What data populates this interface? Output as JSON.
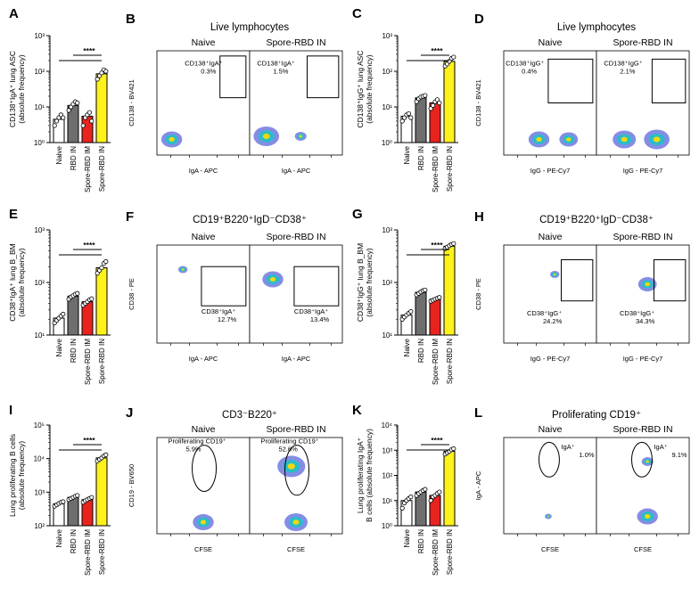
{
  "colors": {
    "naive": "#ffffff",
    "rbd_in": "#6e6e6e",
    "spore_rbd_im": "#e8231e",
    "spore_rbd_in": "#fff21a",
    "flow_low": "#1f2fd0",
    "flow_mid": "#19c6c6",
    "flow_high": "#f4d80b"
  },
  "chart_data": [
    {
      "panel": "A",
      "type": "bar",
      "scale": "log",
      "ylabel": "CD138⁺IgA⁺ lung ASC\n(absolute frequency)",
      "ylim": [
        1,
        1000
      ],
      "ticks": [
        "10⁰",
        "10¹",
        "10²",
        "10³"
      ],
      "categories": [
        "Naive",
        "RBD IN",
        "Spore-RBD IM",
        "Spore-RBD IN"
      ],
      "values": [
        4.5,
        11,
        5.5,
        85
      ],
      "points": [
        [
          3,
          4,
          5,
          6,
          5
        ],
        [
          8,
          10,
          12,
          14,
          13
        ],
        [
          3,
          5,
          6,
          7,
          4
        ],
        [
          60,
          75,
          90,
          110,
          100
        ]
      ],
      "significance": "****"
    },
    {
      "panel": "C",
      "type": "bar",
      "scale": "log",
      "ylabel": "CD138⁺IgG⁺ lung ASC\n(absolute frequency)",
      "ylim": [
        1,
        1000
      ],
      "ticks": [
        "10⁰",
        "10¹",
        "10²",
        "10³"
      ],
      "categories": [
        "Naive",
        "RBD IN",
        "Spore-RBD IM",
        "Spore-RBD IN"
      ],
      "values": [
        5.5,
        18,
        13,
        190
      ],
      "points": [
        [
          4,
          5,
          6,
          6.5,
          5
        ],
        [
          14,
          17,
          19,
          20,
          21
        ],
        [
          9,
          11,
          14,
          16,
          13
        ],
        [
          140,
          160,
          190,
          230,
          250
        ]
      ],
      "significance": "****"
    },
    {
      "panel": "E",
      "type": "bar",
      "scale": "log",
      "ylabel": "CD38⁺IgA⁺ lung B_BM\n(absolute frequency)",
      "ylim": [
        10,
        1000
      ],
      "ticks": [
        "10¹",
        "10²",
        "10³"
      ],
      "categories": [
        "Naive",
        "RBD IN",
        "Spore-RBD IM",
        "Spore-RBD IN"
      ],
      "values": [
        21,
        55,
        43,
        190
      ],
      "points": [
        [
          17,
          19,
          21,
          23,
          25
        ],
        [
          48,
          53,
          56,
          60,
          62
        ],
        [
          37,
          40,
          43,
          47,
          49
        ],
        [
          150,
          170,
          190,
          230,
          250
        ]
      ],
      "significance": "****"
    },
    {
      "panel": "G",
      "type": "bar",
      "scale": "log",
      "ylabel": "CD38⁺IgG⁺ lung B_BM\n(absolute frequency)",
      "ylim": [
        10,
        1000
      ],
      "ticks": [
        "10¹",
        "10²",
        "10³"
      ],
      "categories": [
        "Naive",
        "RBD IN",
        "Spore-RBD IM",
        "Spore-RBD IN"
      ],
      "values": [
        24,
        65,
        48,
        490
      ],
      "points": [
        [
          20,
          22,
          24,
          26,
          28
        ],
        [
          58,
          62,
          66,
          70,
          72
        ],
        [
          44,
          46,
          48,
          50,
          52
        ],
        [
          440,
          470,
          500,
          530,
          550
        ]
      ],
      "significance": "****"
    },
    {
      "panel": "I",
      "type": "bar",
      "scale": "log",
      "ylabel": "Lung proliferating B cells\n(absolute frequency)",
      "ylim": [
        100,
        100000
      ],
      "ticks": [
        "10²",
        "10³",
        "10⁴",
        "10⁵"
      ],
      "categories": [
        "Naive",
        "RBD IN",
        "Spore-RBD IM",
        "Spore-RBD IN"
      ],
      "values": [
        450,
        700,
        600,
        10500
      ],
      "points": [
        [
          380,
          420,
          460,
          500,
          520
        ],
        [
          600,
          650,
          700,
          760,
          800
        ],
        [
          500,
          560,
          600,
          650,
          700
        ],
        [
          8500,
          9500,
          10500,
          12000,
          13000
        ]
      ],
      "significance": "****"
    },
    {
      "panel": "K",
      "type": "bar",
      "scale": "log",
      "ylabel": "Lung proliferating IgA⁺\nB cells (absolute frequency)",
      "ylim": [
        1,
        10000
      ],
      "ticks": [
        "10⁰",
        "10¹",
        "10²",
        "10³",
        "10⁴"
      ],
      "categories": [
        "Naive",
        "RBD IN",
        "Spore-RBD IM",
        "Spore-RBD IN"
      ],
      "values": [
        10,
        22,
        16,
        900
      ],
      "points": [
        [
          5,
          8,
          10,
          12,
          14
        ],
        [
          16,
          19,
          22,
          25,
          28
        ],
        [
          10,
          14,
          16,
          19,
          22
        ],
        [
          700,
          800,
          900,
          1050,
          1150
        ]
      ],
      "significance": "****"
    },
    {
      "panel": "B",
      "type": "scatter",
      "title": "Live lymphocytes",
      "xlabel": "IgA - APC",
      "ylabel": "CD138 - BV421",
      "samples": [
        {
          "name": "Naive",
          "gate_label": "CD138⁺IgA⁺",
          "gate_value": "0.3%"
        },
        {
          "name": "Spore-RBD IN",
          "gate_label": "CD138⁺IgA⁺",
          "gate_value": "1.5%"
        }
      ]
    },
    {
      "panel": "D",
      "type": "scatter",
      "title": "Live lymphocytes",
      "xlabel": "IgG - PE-Cy7",
      "ylabel": "CD138 - BV421",
      "samples": [
        {
          "name": "Naive",
          "gate_label": "CD138⁺IgG⁺",
          "gate_value": "0.4%"
        },
        {
          "name": "Spore-RBD IN",
          "gate_label": "CD138⁺IgG⁺",
          "gate_value": "2.1%"
        }
      ]
    },
    {
      "panel": "F",
      "type": "scatter",
      "title": "CD19⁺B220⁺IgD⁻CD38⁺",
      "xlabel": "IgA - APC",
      "ylabel": "CD38 - PE",
      "samples": [
        {
          "name": "Naive",
          "gate_label": "CD38⁺IgA⁺",
          "gate_value": "12.7%"
        },
        {
          "name": "Spore-RBD IN",
          "gate_label": "CD38⁺IgA⁺",
          "gate_value": "13.4%"
        }
      ]
    },
    {
      "panel": "H",
      "type": "scatter",
      "title": "CD19⁺B220⁺IgD⁻CD38⁺",
      "xlabel": "IgG - PE-Cy7",
      "ylabel": "CD38 - PE",
      "samples": [
        {
          "name": "Naive",
          "gate_label": "CD38⁺IgG⁺",
          "gate_value": "24.2%"
        },
        {
          "name": "Spore-RBD IN",
          "gate_label": "CD38⁺IgG⁺",
          "gate_value": "34.3%"
        }
      ]
    },
    {
      "panel": "J",
      "type": "scatter",
      "title": "CD3⁻B220⁺",
      "xlabel": "CFSE",
      "ylabel": "CD19 - BV650",
      "samples": [
        {
          "name": "Naive",
          "gate_label": "Proliferating CD19⁺",
          "gate_value": "5.9%"
        },
        {
          "name": "Spore-RBD IN",
          "gate_label": "Proliferating CD19⁺",
          "gate_value": "52.6%"
        }
      ]
    },
    {
      "panel": "L",
      "type": "scatter",
      "title": "Proliferating CD19⁺",
      "xlabel": "CFSE",
      "ylabel": "IgA - APC",
      "samples": [
        {
          "name": "Naive",
          "gate_label": "IgA⁺",
          "gate_value": "1.0%"
        },
        {
          "name": "Spore-RBD IN",
          "gate_label": "IgA⁺",
          "gate_value": "9.1%"
        }
      ]
    }
  ]
}
